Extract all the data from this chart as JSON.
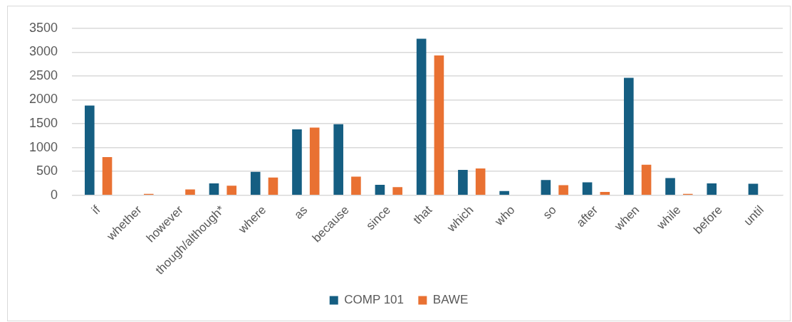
{
  "chart_data": {
    "type": "bar",
    "categories": [
      "if",
      "whether",
      "however",
      "though/although*",
      "where",
      "as",
      "because",
      "since",
      "that",
      "which",
      "who",
      "so",
      "after",
      "when",
      "while",
      "before",
      "until"
    ],
    "series": [
      {
        "name": "COMP 101",
        "color": "#155e82",
        "values": [
          1880,
          0,
          0,
          250,
          490,
          1380,
          1490,
          220,
          3280,
          530,
          90,
          320,
          270,
          2460,
          360,
          250,
          240
        ]
      },
      {
        "name": "BAWE",
        "color": "#e97132",
        "values": [
          800,
          30,
          120,
          200,
          370,
          1420,
          390,
          170,
          2930,
          560,
          0,
          210,
          70,
          640,
          30,
          0,
          0
        ]
      }
    ],
    "ylim": [
      0,
      3500
    ],
    "yticks": [
      0,
      500,
      1000,
      1500,
      2000,
      2500,
      3000,
      3500
    ],
    "grid": "y",
    "legend": "bottom"
  }
}
